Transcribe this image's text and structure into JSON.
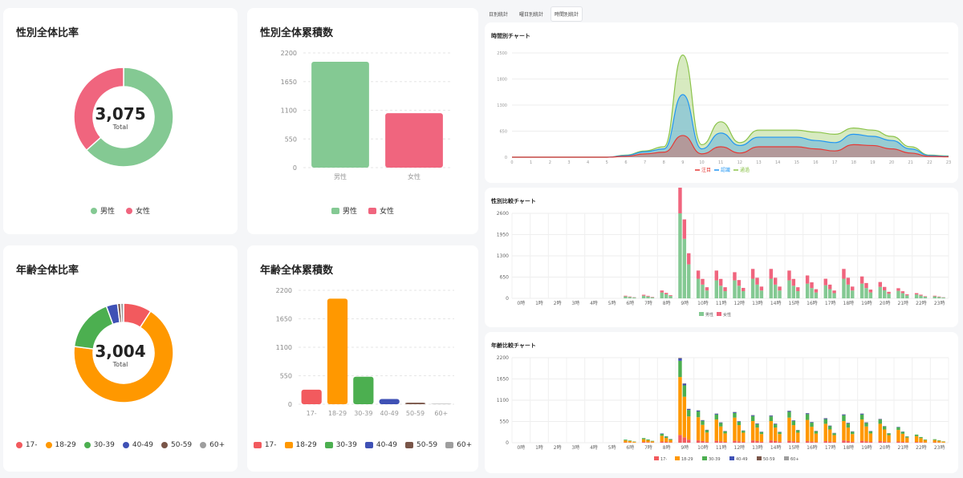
{
  "tabs": [
    "日別統計",
    "曜日別統計",
    "時間別統計"
  ],
  "gender_ratio": {
    "title": "性別全体比率",
    "total_value": "3,075",
    "total_label": "Total",
    "legend": [
      "男性",
      "女性"
    ],
    "chart_data": {
      "type": "pie",
      "labels": [
        "男性",
        "女性"
      ],
      "values": [
        1950,
        1125
      ],
      "colors": [
        "#84c993",
        "#f0657e"
      ]
    }
  },
  "gender_cumulative": {
    "title": "性別全体累積数",
    "legend": [
      "男性",
      "女性"
    ],
    "chart_data": {
      "type": "bar",
      "categories": [
        "男性",
        "女性"
      ],
      "values": [
        2030,
        1045
      ],
      "ylim": [
        0,
        2200
      ],
      "yticks": [
        "2200",
        "1650",
        "1100",
        "550",
        "0"
      ],
      "colors": [
        "#84c993",
        "#f0657e"
      ]
    }
  },
  "age_ratio": {
    "title": "年齢全体比率",
    "total_value": "3,004",
    "total_label": "Total",
    "legend": [
      "17-",
      "18-29",
      "30-39",
      "40-49",
      "50-59",
      "60+"
    ],
    "chart_data": {
      "type": "pie",
      "labels": [
        "17-",
        "18-29",
        "30-39",
        "40-49",
        "50-59",
        "60+"
      ],
      "values": [
        275,
        2040,
        520,
        110,
        30,
        29
      ],
      "colors": [
        "#f25a5e",
        "#ff9800",
        "#4caf50",
        "#3f51b5",
        "#795548",
        "#9e9e9e"
      ]
    }
  },
  "age_cumulative": {
    "title": "年齢全体累積数",
    "legend": [
      "17-",
      "18-29",
      "30-39",
      "40-49",
      "50-59",
      "60+"
    ],
    "chart_data": {
      "type": "bar",
      "categories": [
        "17-",
        "18-29",
        "30-39",
        "40-49",
        "50-59",
        "60+"
      ],
      "values": [
        280,
        2040,
        530,
        100,
        30,
        8
      ],
      "ylim": [
        0,
        2200
      ],
      "yticks": [
        "2200",
        "1650",
        "1100",
        "550",
        "0"
      ],
      "colors": [
        "#f25a5e",
        "#ff9800",
        "#4caf50",
        "#3f51b5",
        "#795548",
        "#9e9e9e"
      ]
    }
  },
  "hourly_chart": {
    "title": "時間別チャート",
    "legend": [
      "注目",
      "認識",
      "通過"
    ],
    "chart_data": {
      "type": "area",
      "x": [
        "0",
        "1",
        "2",
        "3",
        "4",
        "5",
        "6",
        "7",
        "8",
        "9",
        "10",
        "11",
        "12",
        "13",
        "14",
        "15",
        "16",
        "17",
        "18",
        "19",
        "20",
        "21",
        "22",
        "23"
      ],
      "ylim": [
        0,
        2500
      ],
      "yticks": [
        "2500",
        "1800",
        "1300",
        "650",
        "0"
      ],
      "series": [
        {
          "name": "通過",
          "color": "#8bc34a",
          "values": [
            0,
            0,
            0,
            0,
            0,
            0,
            50,
            150,
            250,
            2450,
            300,
            850,
            350,
            650,
            650,
            650,
            600,
            550,
            700,
            650,
            500,
            250,
            50,
            30
          ]
        },
        {
          "name": "認識",
          "color": "#2196f3",
          "values": [
            0,
            0,
            0,
            0,
            0,
            0,
            40,
            130,
            200,
            1500,
            200,
            580,
            280,
            480,
            480,
            480,
            400,
            350,
            550,
            500,
            400,
            200,
            40,
            20
          ]
        },
        {
          "name": "注目",
          "color": "#e53935",
          "values": [
            0,
            0,
            0,
            0,
            0,
            0,
            20,
            80,
            120,
            520,
            80,
            250,
            100,
            250,
            250,
            250,
            200,
            150,
            300,
            280,
            200,
            100,
            20,
            10
          ]
        }
      ]
    }
  },
  "gender_compare": {
    "title": "性別比較チャート",
    "legend": [
      "男性",
      "女性"
    ],
    "chart_data": {
      "type": "bar",
      "categories": [
        "0時",
        "1時",
        "2時",
        "3時",
        "4時",
        "5時",
        "6時",
        "7時",
        "8時",
        "9時",
        "10時",
        "11時",
        "12時",
        "13時",
        "14時",
        "15時",
        "16時",
        "17時",
        "18時",
        "19時",
        "20時",
        "21時",
        "22時",
        "23時"
      ],
      "ylim": [
        0,
        2600
      ],
      "yticks": [
        "2600",
        "1950",
        "1300",
        "650",
        "0"
      ],
      "series": [
        {
          "name": "男性",
          "color": "#84c993",
          "values": [
            0,
            0,
            0,
            0,
            0,
            0,
            60,
            80,
            180,
            2600,
            600,
            550,
            550,
            600,
            600,
            550,
            450,
            400,
            600,
            450,
            350,
            230,
            120,
            60
          ]
        },
        {
          "name": "女性",
          "color": "#f0657e",
          "values": [
            0,
            0,
            0,
            0,
            0,
            0,
            20,
            30,
            60,
            850,
            250,
            300,
            250,
            300,
            300,
            300,
            250,
            200,
            300,
            220,
            150,
            80,
            40,
            20
          ]
        }
      ]
    }
  },
  "age_compare": {
    "title": "年齢比較チャート",
    "legend": [
      "17-",
      "18-29",
      "30-39",
      "40-49",
      "50-59",
      "60+"
    ],
    "chart_data": {
      "type": "bar",
      "categories": [
        "0時",
        "1時",
        "2時",
        "3時",
        "4時",
        "5時",
        "6時",
        "7時",
        "8時",
        "9時",
        "10時",
        "11時",
        "12時",
        "13時",
        "14時",
        "15時",
        "16時",
        "17時",
        "18時",
        "19時",
        "20時",
        "21時",
        "22時",
        "23時"
      ],
      "ylim": [
        0,
        2200
      ],
      "yticks": [
        "2200",
        "1650",
        "1100",
        "550",
        "0"
      ],
      "series": [
        {
          "name": "17-",
          "color": "#f25a5e",
          "values": [
            0,
            0,
            0,
            0,
            0,
            0,
            10,
            20,
            30,
            200,
            60,
            50,
            50,
            60,
            60,
            50,
            40,
            40,
            60,
            50,
            40,
            30,
            20,
            10
          ]
        },
        {
          "name": "18-29",
          "color": "#ff9800",
          "values": [
            0,
            0,
            0,
            0,
            0,
            0,
            50,
            70,
            150,
            1500,
            600,
            550,
            600,
            500,
            500,
            600,
            550,
            450,
            500,
            550,
            450,
            300,
            150,
            60
          ]
        },
        {
          "name": "30-39",
          "color": "#4caf50",
          "values": [
            0,
            0,
            0,
            0,
            0,
            0,
            20,
            30,
            50,
            420,
            150,
            130,
            120,
            130,
            120,
            150,
            150,
            120,
            150,
            130,
            110,
            70,
            40,
            20
          ]
        },
        {
          "name": "40-49",
          "color": "#3f51b5",
          "values": [
            0,
            0,
            0,
            0,
            0,
            0,
            0,
            0,
            10,
            60,
            20,
            20,
            20,
            20,
            20,
            20,
            20,
            20,
            20,
            20,
            10,
            10,
            0,
            0
          ]
        },
        {
          "name": "50-59",
          "color": "#795548",
          "values": [
            0,
            0,
            0,
            0,
            0,
            0,
            0,
            0,
            0,
            10,
            5,
            5,
            5,
            5,
            5,
            5,
            5,
            5,
            5,
            5,
            5,
            0,
            0,
            0
          ]
        },
        {
          "name": "60+",
          "color": "#9e9e9e",
          "values": [
            0,
            0,
            0,
            0,
            0,
            0,
            0,
            0,
            0,
            5,
            2,
            2,
            2,
            2,
            2,
            2,
            2,
            2,
            2,
            2,
            2,
            0,
            0,
            0
          ]
        }
      ]
    }
  }
}
